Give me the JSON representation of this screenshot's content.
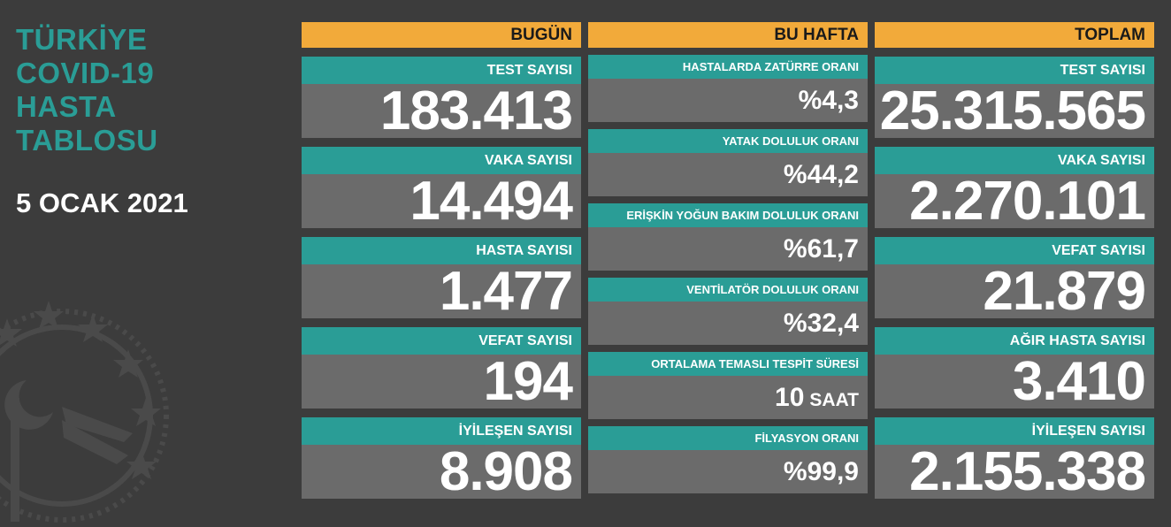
{
  "sidebar": {
    "title": "TÜRKİYE\nCOVID-19\nHASTA\nTABLOSU",
    "date": "5 OCAK 2021"
  },
  "bugun": {
    "header": "BUGÜN",
    "cards": [
      {
        "label": "TEST SAYISI",
        "value": "183.413"
      },
      {
        "label": "VAKA SAYISI",
        "value": "14.494"
      },
      {
        "label": "HASTA SAYISI",
        "value": "1.477"
      },
      {
        "label": "VEFAT SAYISI",
        "value": "194"
      },
      {
        "label": "İYİLEŞEN SAYISI",
        "value": "8.908"
      }
    ]
  },
  "bu_hafta": {
    "header": "BU HAFTA",
    "cards": [
      {
        "label": "HASTALARDA ZATÜRRE ORANI",
        "value": "%4,3"
      },
      {
        "label": "YATAK DOLULUK ORANI",
        "value": "%44,2"
      },
      {
        "label": "ERİŞKİN YOĞUN BAKIM DOLULUK ORANI",
        "value": "%61,7"
      },
      {
        "label": "VENTİLATÖR DOLULUK ORANI",
        "value": "%32,4"
      },
      {
        "label": "ORTALAMA TEMASLI TESPİT SÜRESİ",
        "value": "10",
        "unit": "SAAT"
      },
      {
        "label": "FİLYASYON ORANI",
        "value": "%99,9"
      }
    ]
  },
  "toplam": {
    "header": "TOPLAM",
    "cards": [
      {
        "label": "TEST SAYISI",
        "value": "25.315.565"
      },
      {
        "label": "VAKA SAYISI",
        "value": "2.270.101"
      },
      {
        "label": "VEFAT SAYISI",
        "value": "21.879"
      },
      {
        "label": "AĞIR HASTA SAYISI",
        "value": "3.410"
      },
      {
        "label": "İYİLEŞEN SAYISI",
        "value": "2.155.338"
      }
    ]
  },
  "colors": {
    "background": "#3c3c3c",
    "header": "#f2aa3a",
    "label": "#2a9d96",
    "value_box": "#6b6b6b"
  },
  "icons": [
    "ministry-emblem-icon"
  ]
}
